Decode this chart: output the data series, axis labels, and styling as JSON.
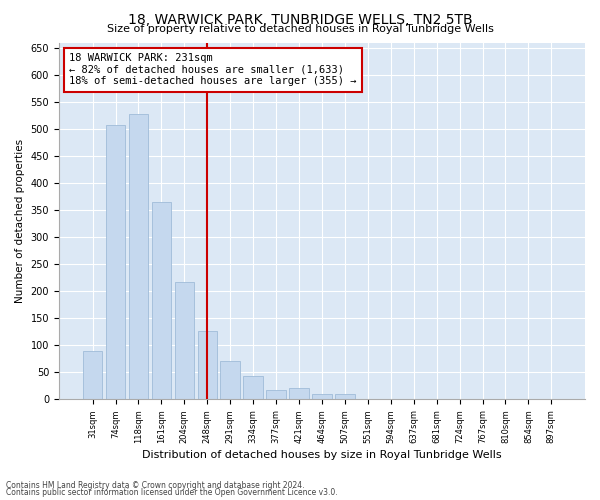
{
  "title": "18, WARWICK PARK, TUNBRIDGE WELLS, TN2 5TB",
  "subtitle": "Size of property relative to detached houses in Royal Tunbridge Wells",
  "xlabel": "Distribution of detached houses by size in Royal Tunbridge Wells",
  "ylabel": "Number of detached properties",
  "footnote1": "Contains HM Land Registry data © Crown copyright and database right 2024.",
  "footnote2": "Contains public sector information licensed under the Open Government Licence v3.0.",
  "annotation_line1": "18 WARWICK PARK: 231sqm",
  "annotation_line2": "← 82% of detached houses are smaller (1,633)",
  "annotation_line3": "18% of semi-detached houses are larger (355) →",
  "bar_color": "#c5d8ee",
  "bar_edgecolor": "#a0bcd8",
  "vline_color": "#cc0000",
  "annotation_box_edgecolor": "#cc0000",
  "annotation_box_facecolor": "#ffffff",
  "categories": [
    "31sqm",
    "74sqm",
    "118sqm",
    "161sqm",
    "204sqm",
    "248sqm",
    "291sqm",
    "334sqm",
    "377sqm",
    "421sqm",
    "464sqm",
    "507sqm",
    "551sqm",
    "594sqm",
    "637sqm",
    "681sqm",
    "724sqm",
    "767sqm",
    "810sqm",
    "854sqm",
    "897sqm"
  ],
  "values": [
    90,
    507,
    528,
    365,
    217,
    127,
    70,
    43,
    18,
    21,
    10,
    9,
    1,
    1,
    0,
    0,
    0,
    0,
    0,
    0,
    1
  ],
  "ylim": [
    0,
    660
  ],
  "yticks": [
    0,
    50,
    100,
    150,
    200,
    250,
    300,
    350,
    400,
    450,
    500,
    550,
    600,
    650
  ],
  "vline_x_index": 5,
  "ax_facecolor": "#dce8f5",
  "background_color": "#ffffff",
  "grid_color": "#ffffff"
}
